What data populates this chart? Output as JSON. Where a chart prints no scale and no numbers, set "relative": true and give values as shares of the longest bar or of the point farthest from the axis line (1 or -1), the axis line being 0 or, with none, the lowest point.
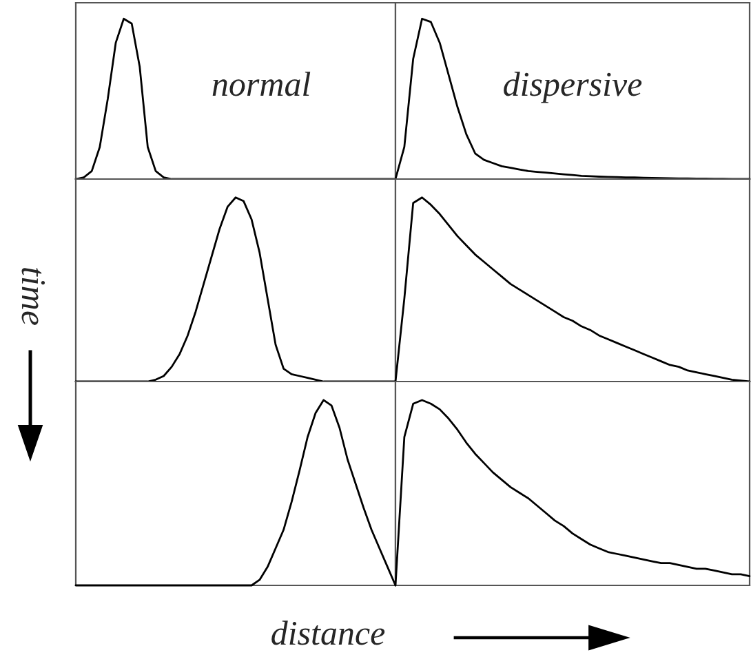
{
  "chart_data": [
    {
      "type": "line",
      "relative": true,
      "color": "#000000",
      "annotations": [
        "normal"
      ],
      "categories": [
        null,
        null,
        null,
        null,
        null,
        null,
        null,
        null,
        null,
        null,
        null,
        null,
        null,
        null,
        null,
        null,
        null,
        null,
        null,
        null,
        null,
        null,
        null,
        null,
        null,
        null,
        null,
        null,
        null,
        null,
        null,
        null,
        null,
        null,
        null,
        null,
        null,
        null,
        null,
        null,
        null
      ],
      "values": [
        0,
        0.01,
        0.05,
        0.2,
        0.5,
        0.85,
        1.0,
        0.97,
        0.7,
        0.2,
        0.05,
        0.01,
        0,
        0,
        0,
        0,
        0,
        0,
        0,
        0,
        0,
        0,
        0,
        0,
        0,
        0,
        0,
        0,
        0,
        0,
        0,
        0,
        0,
        0,
        0,
        0,
        0,
        0,
        0,
        0,
        0
      ]
    },
    {
      "type": "line",
      "relative": true,
      "color": "#000000",
      "annotations": [
        "dispersive"
      ],
      "categories": [
        null,
        null,
        null,
        null,
        null,
        null,
        null,
        null,
        null,
        null,
        null,
        null,
        null,
        null,
        null,
        null,
        null,
        null,
        null,
        null,
        null,
        null,
        null,
        null,
        null,
        null,
        null,
        null,
        null,
        null,
        null,
        null,
        null,
        null,
        null,
        null,
        null,
        null,
        null,
        null,
        null
      ],
      "values": [
        0,
        0.2,
        0.75,
        1.0,
        0.98,
        0.85,
        0.65,
        0.45,
        0.28,
        0.16,
        0.12,
        0.1,
        0.08,
        0.07,
        0.06,
        0.05,
        0.045,
        0.04,
        0.035,
        0.03,
        0.025,
        0.02,
        0.018,
        0.015,
        0.013,
        0.012,
        0.01,
        0.01,
        0.008,
        0.007,
        0.006,
        0.005,
        0.004,
        0.004,
        0.003,
        0.003,
        0.002,
        0.002,
        0.001,
        0.001,
        0
      ]
    },
    {
      "type": "line",
      "relative": true,
      "color": "#000000",
      "ylabel": "time",
      "categories": [
        null,
        null,
        null,
        null,
        null,
        null,
        null,
        null,
        null,
        null,
        null,
        null,
        null,
        null,
        null,
        null,
        null,
        null,
        null,
        null,
        null,
        null,
        null,
        null,
        null,
        null,
        null,
        null,
        null,
        null,
        null,
        null,
        null,
        null,
        null,
        null,
        null,
        null,
        null,
        null,
        null
      ],
      "values": [
        0,
        0,
        0,
        0,
        0,
        0,
        0,
        0,
        0,
        0,
        0.01,
        0.03,
        0.08,
        0.15,
        0.25,
        0.38,
        0.53,
        0.68,
        0.83,
        0.95,
        1.0,
        0.98,
        0.88,
        0.7,
        0.45,
        0.2,
        0.07,
        0.04,
        0.03,
        0.02,
        0.01,
        0,
        0,
        0,
        0,
        0,
        0,
        0,
        0,
        0,
        0
      ]
    },
    {
      "type": "line",
      "relative": true,
      "color": "#000000",
      "categories": [
        null,
        null,
        null,
        null,
        null,
        null,
        null,
        null,
        null,
        null,
        null,
        null,
        null,
        null,
        null,
        null,
        null,
        null,
        null,
        null,
        null,
        null,
        null,
        null,
        null,
        null,
        null,
        null,
        null,
        null,
        null,
        null,
        null,
        null,
        null,
        null,
        null,
        null,
        null,
        null,
        null
      ],
      "values": [
        0,
        0.45,
        0.97,
        1.0,
        0.96,
        0.91,
        0.85,
        0.79,
        0.74,
        0.69,
        0.65,
        0.61,
        0.57,
        0.53,
        0.5,
        0.47,
        0.44,
        0.41,
        0.38,
        0.35,
        0.33,
        0.3,
        0.28,
        0.25,
        0.23,
        0.21,
        0.19,
        0.17,
        0.15,
        0.13,
        0.11,
        0.09,
        0.08,
        0.06,
        0.05,
        0.04,
        0.03,
        0.02,
        0.01,
        0.005,
        0
      ]
    },
    {
      "type": "line",
      "relative": true,
      "color": "#000000",
      "xlabel": "distance",
      "categories": [
        null,
        null,
        null,
        null,
        null,
        null,
        null,
        null,
        null,
        null,
        null,
        null,
        null,
        null,
        null,
        null,
        null,
        null,
        null,
        null,
        null,
        null,
        null,
        null,
        null,
        null,
        null,
        null,
        null,
        null,
        null,
        null,
        null,
        null,
        null,
        null,
        null,
        null,
        null,
        null,
        null
      ],
      "values": [
        0,
        0,
        0,
        0,
        0,
        0,
        0,
        0,
        0,
        0,
        0,
        0,
        0,
        0,
        0,
        0,
        0,
        0,
        0,
        0,
        0,
        0,
        0,
        0.03,
        0.1,
        0.2,
        0.3,
        0.45,
        0.62,
        0.8,
        0.93,
        1.0,
        0.97,
        0.85,
        0.68,
        0.55,
        0.42,
        0.3,
        0.2,
        0.1,
        0
      ]
    },
    {
      "type": "line",
      "relative": true,
      "color": "#000000",
      "categories": [
        null,
        null,
        null,
        null,
        null,
        null,
        null,
        null,
        null,
        null,
        null,
        null,
        null,
        null,
        null,
        null,
        null,
        null,
        null,
        null,
        null,
        null,
        null,
        null,
        null,
        null,
        null,
        null,
        null,
        null,
        null,
        null,
        null,
        null,
        null,
        null,
        null,
        null,
        null,
        null,
        null
      ],
      "values": [
        0,
        0.8,
        0.98,
        1.0,
        0.98,
        0.95,
        0.9,
        0.84,
        0.77,
        0.71,
        0.66,
        0.61,
        0.57,
        0.53,
        0.5,
        0.47,
        0.43,
        0.39,
        0.35,
        0.32,
        0.28,
        0.25,
        0.22,
        0.2,
        0.18,
        0.17,
        0.16,
        0.15,
        0.14,
        0.13,
        0.12,
        0.12,
        0.11,
        0.1,
        0.09,
        0.09,
        0.08,
        0.07,
        0.06,
        0.06,
        0.05
      ]
    }
  ]
}
